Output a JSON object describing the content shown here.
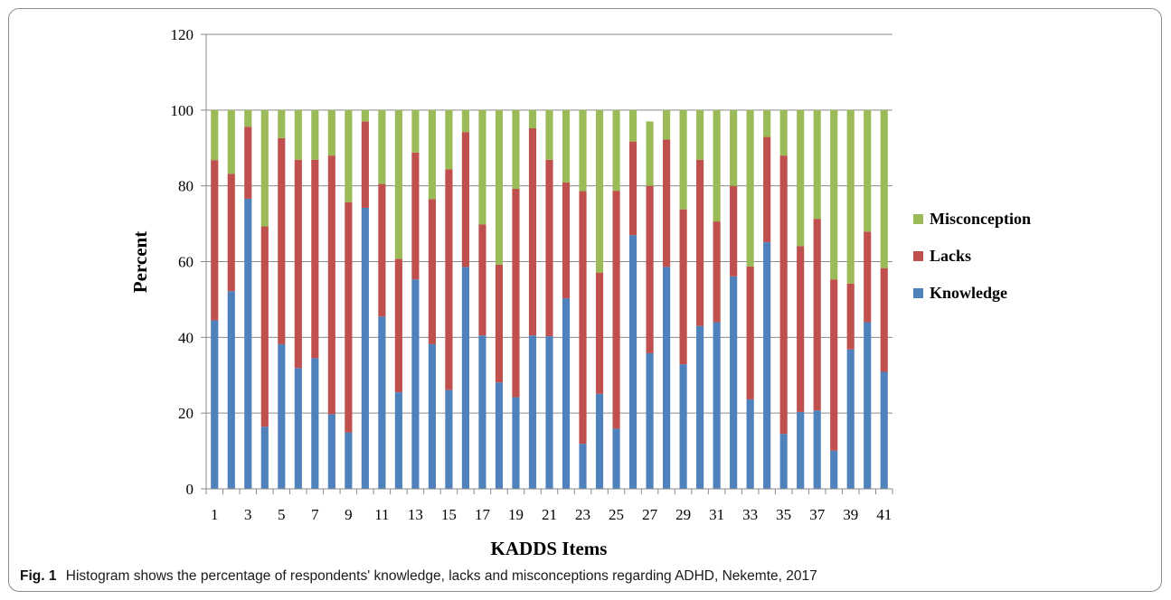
{
  "chart_data": {
    "type": "bar",
    "stacked": true,
    "xlabel": "KADDS Items",
    "ylabel": "Percent",
    "ylim": [
      0,
      120
    ],
    "yticks": [
      0,
      20,
      40,
      60,
      80,
      100,
      120
    ],
    "grid": true,
    "legend_position": "right",
    "categories": [
      "1",
      "2",
      "3",
      "4",
      "5",
      "6",
      "7",
      "8",
      "9",
      "10",
      "11",
      "12",
      "13",
      "14",
      "15",
      "16",
      "17",
      "18",
      "19",
      "20",
      "21",
      "22",
      "23",
      "24",
      "25",
      "26",
      "27",
      "28",
      "29",
      "30",
      "31",
      "32",
      "33",
      "34",
      "35",
      "36",
      "37",
      "38",
      "39",
      "40",
      "41"
    ],
    "tick_labels": [
      "1",
      "3",
      "5",
      "7",
      "9",
      "11",
      "13",
      "15",
      "17",
      "19",
      "21",
      "23",
      "25",
      "27",
      "29",
      "31",
      "33",
      "35",
      "37",
      "39",
      "41"
    ],
    "series": [
      {
        "name": "Knowledge",
        "color": "#4f81bd",
        "values": [
          44.5,
          52.2,
          76.6,
          16.4,
          38.2,
          31.9,
          34.5,
          19.7,
          14.9,
          74.2,
          45.5,
          25.5,
          55.3,
          38.2,
          26.1,
          58.6,
          40.5,
          28.1,
          24.2,
          40.5,
          40.3,
          50.3,
          11.9,
          25.1,
          15.9,
          67.0,
          35.8,
          58.6,
          32.9,
          43.0,
          44.0,
          56.1,
          23.6,
          65.1,
          14.5,
          20.3,
          20.7,
          10.1,
          36.8,
          44.0,
          30.9
        ]
      },
      {
        "name": "Lacks",
        "color": "#c0504d",
        "values": [
          42.3,
          31.0,
          19.0,
          52.9,
          54.4,
          55.0,
          52.4,
          68.3,
          60.8,
          22.8,
          35.0,
          35.2,
          33.5,
          38.3,
          58.3,
          35.6,
          29.3,
          31.1,
          55.0,
          54.7,
          46.6,
          30.6,
          66.7,
          32.0,
          62.8,
          24.7,
          44.2,
          33.6,
          40.9,
          43.9,
          26.6,
          23.9,
          35.1,
          27.8,
          73.5,
          43.8,
          50.6,
          45.2,
          17.4,
          23.9,
          27.4
        ]
      },
      {
        "name": "Misconception",
        "color": "#9bbb59",
        "values": [
          13.2,
          16.8,
          4.4,
          30.7,
          7.4,
          13.1,
          13.1,
          12.0,
          24.3,
          3.0,
          19.5,
          39.3,
          11.2,
          23.5,
          15.6,
          5.8,
          30.2,
          40.8,
          20.8,
          4.8,
          13.1,
          19.1,
          21.4,
          42.9,
          21.3,
          8.3,
          17.0,
          7.8,
          26.2,
          13.1,
          29.4,
          20.0,
          41.3,
          7.1,
          12.0,
          35.9,
          28.7,
          44.7,
          45.8,
          32.1,
          41.7
        ]
      }
    ]
  },
  "caption": {
    "label": "Fig. 1",
    "text": "Histogram shows the percentage of respondents' knowledge, lacks and misconceptions regarding ADHD, Nekemte, 2017"
  }
}
